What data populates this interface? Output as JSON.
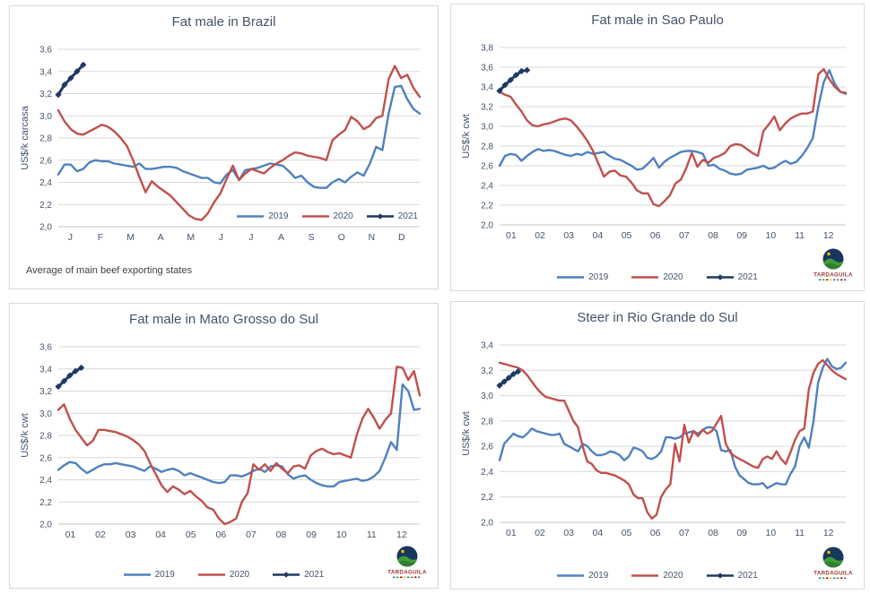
{
  "colors": {
    "s2019": "#4F81BD",
    "s2020": "#C0504D",
    "s2021": "#1F3864",
    "grid": "#D9D9D9",
    "axis": "#C6C6C6",
    "chart_text": "#44546A",
    "note_text": "#404040",
    "panel_border": "#D9D9D9",
    "logo_text": "#953735",
    "logo_sky": "#17375E",
    "logo_hill": "#3F9C35",
    "logo_sun": "#FFC000"
  },
  "logo": {
    "text": "TARDAGUILA"
  },
  "chart_data": [
    {
      "type": "line",
      "title": "Fat male in Brazil",
      "ylabel": "US$/k carcasa",
      "note": "Average of main beef exporting states",
      "ylim": [
        2.0,
        3.6
      ],
      "yticks": [
        "2,0",
        "2,2",
        "2,4",
        "2,6",
        "2,8",
        "3,0",
        "3,2",
        "3,4",
        "3,6"
      ],
      "xlabels": [
        "J",
        "F",
        "M",
        "A",
        "M",
        "J",
        "J",
        "A",
        "S",
        "O",
        "N",
        "D"
      ],
      "grid": true,
      "legend_position": "inside-right",
      "has_logo": false,
      "series": [
        {
          "name": "2019",
          "color": "s2019",
          "values": [
            2.47,
            2.56,
            2.56,
            2.5,
            2.52,
            2.58,
            2.6,
            2.59,
            2.59,
            2.57,
            2.56,
            2.55,
            2.54,
            2.57,
            2.52,
            2.52,
            2.53,
            2.54,
            2.54,
            2.53,
            2.5,
            2.48,
            2.46,
            2.44,
            2.44,
            2.4,
            2.39,
            2.47,
            2.51,
            2.42,
            2.51,
            2.52,
            2.53,
            2.55,
            2.57,
            2.56,
            2.55,
            2.5,
            2.44,
            2.46,
            2.4,
            2.36,
            2.35,
            2.35,
            2.4,
            2.43,
            2.4,
            2.45,
            2.49,
            2.46,
            2.57,
            2.72,
            2.69,
            3.02,
            3.26,
            3.27,
            3.15,
            3.06,
            3.02
          ]
        },
        {
          "name": "2020",
          "color": "s2020",
          "values": [
            3.05,
            2.95,
            2.88,
            2.84,
            2.83,
            2.86,
            2.89,
            2.92,
            2.9,
            2.86,
            2.8,
            2.73,
            2.6,
            2.45,
            2.31,
            2.41,
            2.36,
            2.32,
            2.28,
            2.22,
            2.16,
            2.1,
            2.07,
            2.06,
            2.12,
            2.22,
            2.3,
            2.43,
            2.55,
            2.42,
            2.48,
            2.52,
            2.5,
            2.48,
            2.53,
            2.57,
            2.6,
            2.64,
            2.67,
            2.66,
            2.64,
            2.63,
            2.62,
            2.6,
            2.78,
            2.83,
            2.87,
            2.99,
            2.95,
            2.88,
            2.91,
            2.98,
            3.0,
            3.33,
            3.45,
            3.34,
            3.37,
            3.25,
            3.17
          ]
        },
        {
          "name": "2021",
          "color": "s2021",
          "marker": "diamond",
          "partial": true,
          "values": [
            3.19,
            3.28,
            3.34,
            3.4,
            3.46
          ]
        }
      ]
    },
    {
      "type": "line",
      "title": "Fat male in Sao Paulo",
      "ylabel": "US$/k cwt",
      "ylim": [
        2.0,
        3.8
      ],
      "yticks": [
        "2,0",
        "2,2",
        "2,4",
        "2,6",
        "2,8",
        "3,0",
        "3,2",
        "3,4",
        "3,6",
        "3,8"
      ],
      "xlabels": [
        "01",
        "02",
        "03",
        "04",
        "05",
        "06",
        "07",
        "08",
        "09",
        "10",
        "11",
        "12"
      ],
      "grid": true,
      "legend_position": "below",
      "has_logo": true,
      "series": [
        {
          "name": "2019",
          "color": "s2019",
          "values": [
            2.6,
            2.7,
            2.72,
            2.71,
            2.65,
            2.7,
            2.74,
            2.77,
            2.75,
            2.76,
            2.75,
            2.73,
            2.71,
            2.7,
            2.72,
            2.71,
            2.74,
            2.72,
            2.73,
            2.74,
            2.7,
            2.67,
            2.66,
            2.63,
            2.6,
            2.56,
            2.57,
            2.62,
            2.68,
            2.58,
            2.64,
            2.68,
            2.71,
            2.74,
            2.75,
            2.75,
            2.74,
            2.72,
            2.6,
            2.61,
            2.57,
            2.55,
            2.52,
            2.51,
            2.52,
            2.56,
            2.57,
            2.58,
            2.6,
            2.57,
            2.58,
            2.62,
            2.65,
            2.62,
            2.64,
            2.7,
            2.78,
            2.88,
            3.2,
            3.45,
            3.57,
            3.43,
            3.35,
            3.33
          ]
        },
        {
          "name": "2020",
          "color": "s2020",
          "values": [
            3.35,
            3.32,
            3.3,
            3.22,
            3.15,
            3.06,
            3.01,
            3.0,
            3.02,
            3.03,
            3.05,
            3.07,
            3.08,
            3.06,
            3.0,
            2.93,
            2.85,
            2.75,
            2.62,
            2.49,
            2.54,
            2.55,
            2.5,
            2.49,
            2.43,
            2.35,
            2.32,
            2.32,
            2.21,
            2.19,
            2.24,
            2.3,
            2.42,
            2.46,
            2.58,
            2.73,
            2.59,
            2.66,
            2.63,
            2.68,
            2.7,
            2.73,
            2.8,
            2.82,
            2.81,
            2.77,
            2.73,
            2.7,
            2.95,
            3.02,
            3.1,
            2.96,
            3.03,
            3.08,
            3.11,
            3.13,
            3.13,
            3.15,
            3.53,
            3.58,
            3.48,
            3.4,
            3.35,
            3.34
          ]
        },
        {
          "name": "2021",
          "color": "s2021",
          "marker": "diamond",
          "partial": true,
          "values": [
            3.36,
            3.42,
            3.47,
            3.52,
            3.56,
            3.57
          ]
        }
      ]
    },
    {
      "type": "line",
      "title": "Fat male in Mato Grosso do Sul",
      "ylabel": "US$/k cwt",
      "ylim": [
        2.0,
        3.6
      ],
      "yticks": [
        "2,0",
        "2,2",
        "2,4",
        "2,6",
        "2,8",
        "3,0",
        "3,2",
        "3,4",
        "3,6"
      ],
      "xlabels": [
        "01",
        "02",
        "03",
        "04",
        "05",
        "06",
        "07",
        "08",
        "09",
        "10",
        "11",
        "12"
      ],
      "grid": true,
      "legend_position": "below",
      "has_logo": true,
      "series": [
        {
          "name": "2019",
          "color": "s2019",
          "values": [
            2.49,
            2.53,
            2.56,
            2.55,
            2.5,
            2.46,
            2.49,
            2.52,
            2.54,
            2.54,
            2.55,
            2.54,
            2.53,
            2.52,
            2.5,
            2.48,
            2.52,
            2.5,
            2.47,
            2.49,
            2.5,
            2.48,
            2.44,
            2.46,
            2.44,
            2.42,
            2.4,
            2.38,
            2.37,
            2.38,
            2.44,
            2.44,
            2.43,
            2.45,
            2.48,
            2.5,
            2.47,
            2.52,
            2.53,
            2.52,
            2.45,
            2.41,
            2.43,
            2.44,
            2.4,
            2.37,
            2.35,
            2.34,
            2.34,
            2.38,
            2.39,
            2.4,
            2.41,
            2.39,
            2.4,
            2.43,
            2.48,
            2.6,
            2.74,
            2.67,
            3.26,
            3.2,
            3.03,
            3.04
          ]
        },
        {
          "name": "2020",
          "color": "s2020",
          "values": [
            3.03,
            3.08,
            2.95,
            2.85,
            2.78,
            2.71,
            2.75,
            2.85,
            2.85,
            2.84,
            2.83,
            2.81,
            2.79,
            2.76,
            2.72,
            2.66,
            2.55,
            2.45,
            2.35,
            2.29,
            2.34,
            2.31,
            2.27,
            2.3,
            2.25,
            2.21,
            2.15,
            2.13,
            2.05,
            2.0,
            2.02,
            2.05,
            2.2,
            2.28,
            2.54,
            2.49,
            2.54,
            2.48,
            2.55,
            2.5,
            2.46,
            2.52,
            2.53,
            2.5,
            2.62,
            2.66,
            2.68,
            2.65,
            2.63,
            2.64,
            2.62,
            2.6,
            2.8,
            2.95,
            3.04,
            2.96,
            2.86,
            2.94,
            3.0,
            3.42,
            3.41,
            3.3,
            3.38,
            3.16
          ]
        },
        {
          "name": "2021",
          "color": "s2021",
          "marker": "diamond",
          "partial": true,
          "values": [
            3.24,
            3.29,
            3.34,
            3.38,
            3.41
          ]
        }
      ]
    },
    {
      "type": "line",
      "title": "Steer in Rio Grande do Sul",
      "ylabel": "US$/k cwt",
      "ylim": [
        2.0,
        3.4
      ],
      "yticks": [
        "2,0",
        "2,2",
        "2,4",
        "2,6",
        "2,8",
        "3,0",
        "3,2",
        "3,4"
      ],
      "xlabels": [
        "01",
        "02",
        "03",
        "04",
        "05",
        "06",
        "07",
        "08",
        "09",
        "10",
        "11",
        "12"
      ],
      "grid": true,
      "legend_position": "below",
      "has_logo": true,
      "series": [
        {
          "name": "2019",
          "color": "s2019",
          "values": [
            2.49,
            2.62,
            2.66,
            2.7,
            2.68,
            2.67,
            2.7,
            2.74,
            2.72,
            2.71,
            2.7,
            2.69,
            2.69,
            2.7,
            2.62,
            2.6,
            2.58,
            2.56,
            2.62,
            2.6,
            2.56,
            2.53,
            2.53,
            2.54,
            2.56,
            2.55,
            2.53,
            2.49,
            2.52,
            2.59,
            2.58,
            2.56,
            2.51,
            2.5,
            2.52,
            2.56,
            2.67,
            2.67,
            2.66,
            2.67,
            2.7,
            2.71,
            2.72,
            2.7,
            2.73,
            2.75,
            2.75,
            2.72,
            2.57,
            2.56,
            2.57,
            2.44,
            2.37,
            2.34,
            2.31,
            2.3,
            2.3,
            2.31,
            2.27,
            2.29,
            2.31,
            2.3,
            2.3,
            2.38,
            2.44,
            2.6,
            2.67,
            2.59,
            2.8,
            3.1,
            3.22,
            3.29,
            3.23,
            3.21,
            3.22,
            3.26
          ]
        },
        {
          "name": "2020",
          "color": "s2020",
          "values": [
            3.26,
            3.25,
            3.24,
            3.23,
            3.22,
            3.2,
            3.16,
            3.11,
            3.06,
            3.02,
            2.99,
            2.98,
            2.97,
            2.96,
            2.96,
            2.88,
            2.8,
            2.75,
            2.6,
            2.48,
            2.46,
            2.41,
            2.39,
            2.39,
            2.38,
            2.37,
            2.35,
            2.33,
            2.3,
            2.22,
            2.19,
            2.19,
            2.08,
            2.03,
            2.06,
            2.2,
            2.26,
            2.3,
            2.62,
            2.48,
            2.77,
            2.63,
            2.72,
            2.68,
            2.73,
            2.7,
            2.72,
            2.78,
            2.84,
            2.62,
            2.55,
            2.52,
            2.5,
            2.48,
            2.46,
            2.44,
            2.43,
            2.5,
            2.52,
            2.5,
            2.56,
            2.5,
            2.46,
            2.55,
            2.65,
            2.72,
            2.74,
            3.05,
            3.18,
            3.25,
            3.28,
            3.24,
            3.2,
            3.17,
            3.15,
            3.13
          ]
        },
        {
          "name": "2021",
          "color": "s2021",
          "marker": "diamond",
          "partial": true,
          "values": [
            3.08,
            3.11,
            3.14,
            3.17,
            3.19
          ]
        }
      ]
    }
  ]
}
